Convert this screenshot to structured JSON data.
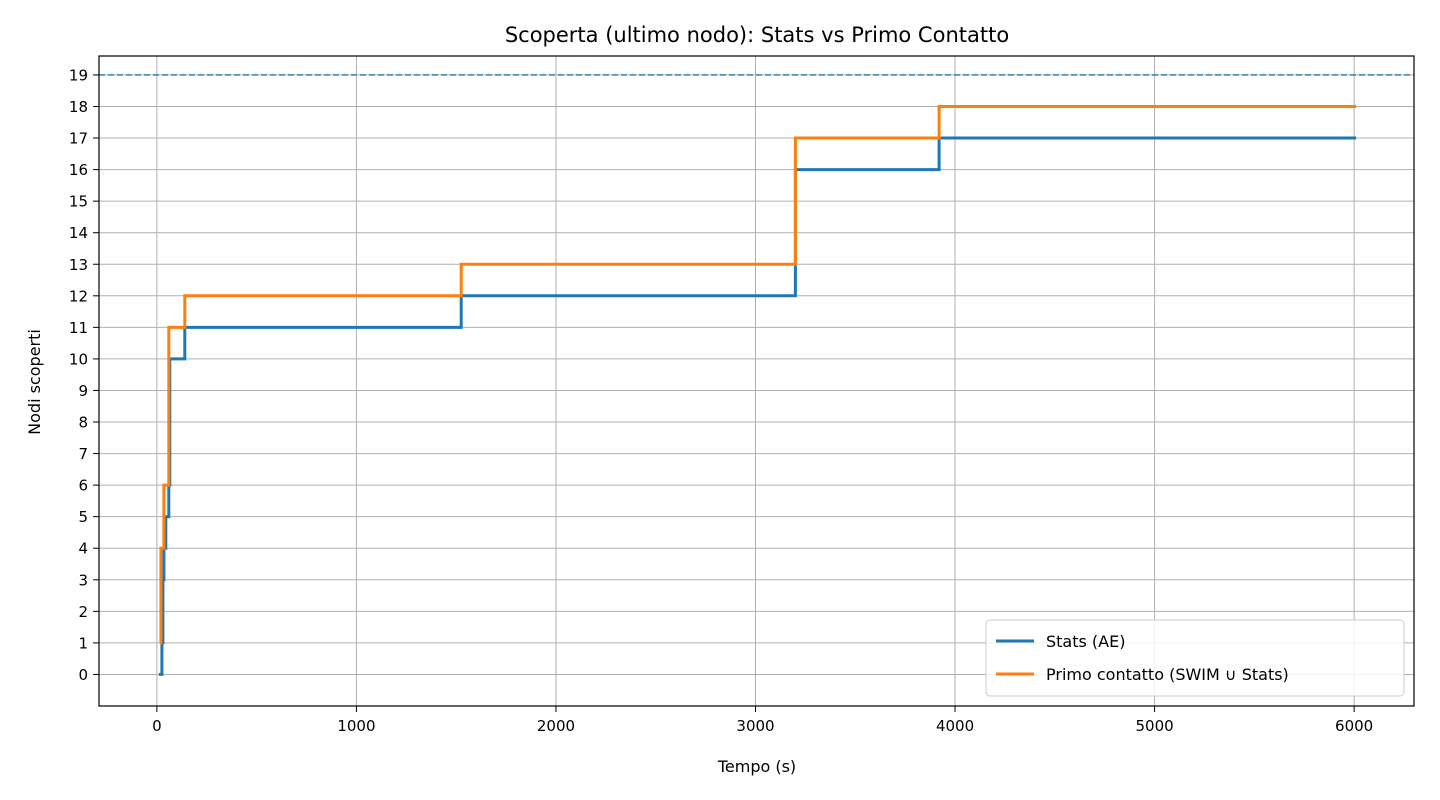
{
  "chart_data": {
    "type": "line",
    "step": "post",
    "title": "Scoperta (ultimo nodo): Stats vs Primo Contatto",
    "xlabel": "Tempo (s)",
    "ylabel": "Nodi scoperti",
    "xlim": [
      -290,
      6300
    ],
    "ylim": [
      -1,
      19.6
    ],
    "xticks": [
      0,
      1000,
      2000,
      3000,
      4000,
      5000,
      6000
    ],
    "yticks": [
      0,
      1,
      2,
      3,
      4,
      5,
      6,
      7,
      8,
      9,
      10,
      11,
      12,
      13,
      14,
      15,
      16,
      17,
      18,
      19
    ],
    "grid": true,
    "legend_position": "bottom-right",
    "reference_line": {
      "y": 19,
      "style": "dashed",
      "color": "#1f77b4"
    },
    "series": [
      {
        "name": "Stats (AE)",
        "color": "#1f77b4",
        "points": [
          [
            10,
            0
          ],
          [
            25,
            1
          ],
          [
            30,
            3
          ],
          [
            35,
            4
          ],
          [
            45,
            5
          ],
          [
            60,
            6
          ],
          [
            65,
            10
          ],
          [
            140,
            11
          ],
          [
            1525,
            12
          ],
          [
            3200,
            16
          ],
          [
            3920,
            17
          ],
          [
            6010,
            17
          ]
        ]
      },
      {
        "name": "Primo contatto (SWIM ∪ Stats)",
        "color": "#ff7f0e",
        "points": [
          [
            15,
            1
          ],
          [
            20,
            4
          ],
          [
            35,
            6
          ],
          [
            60,
            11
          ],
          [
            140,
            12
          ],
          [
            1525,
            13
          ],
          [
            3200,
            17
          ],
          [
            3920,
            18
          ],
          [
            6010,
            18
          ]
        ]
      }
    ]
  }
}
